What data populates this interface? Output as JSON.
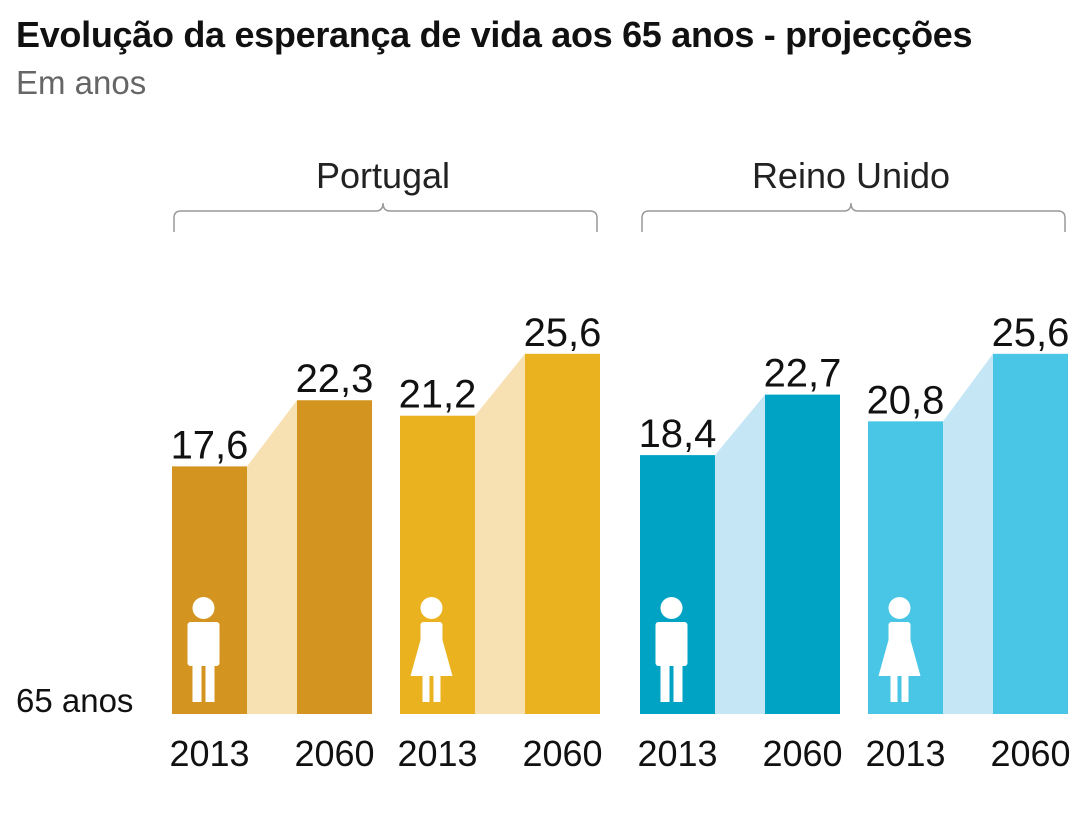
{
  "title": "Evolução da esperança de vida aos 65 anos - projecções",
  "subtitle": "Em anos",
  "colors": {
    "portugal_men": "#d49420",
    "portugal_women": "#ebb220",
    "portugal_connector": "#f7e1b3",
    "uk_men": "#01a3c5",
    "uk_women": "#49c5e6",
    "uk_connector": "#c4e6f5",
    "bracket": "#999999",
    "icon": "#ffffff"
  },
  "chart_data": {
    "type": "bar",
    "baseline_label": "65 anos",
    "groups": [
      {
        "name": "Portugal",
        "series": [
          {
            "sex_icon": "man-icon",
            "color_key": "portugal_men",
            "points": [
              {
                "year": "2013",
                "label": "17,6",
                "value": 17.6
              },
              {
                "year": "2060",
                "label": "22,3",
                "value": 22.3
              }
            ]
          },
          {
            "sex_icon": "woman-icon",
            "color_key": "portugal_women",
            "points": [
              {
                "year": "2013",
                "label": "21,2",
                "value": 21.2
              },
              {
                "year": "2060",
                "label": "25,6",
                "value": 25.6
              }
            ]
          }
        ]
      },
      {
        "name": "Reino Unido",
        "series": [
          {
            "sex_icon": "man-icon",
            "color_key": "uk_men",
            "points": [
              {
                "year": "2013",
                "label": "18,4",
                "value": 18.4
              },
              {
                "year": "2060",
                "label": "22,7",
                "value": 22.7
              }
            ]
          },
          {
            "sex_icon": "woman-icon",
            "color_key": "uk_women",
            "points": [
              {
                "year": "2013",
                "label": "20,8",
                "value": 20.8
              },
              {
                "year": "2060",
                "label": "25,6",
                "value": 25.6
              }
            ]
          }
        ]
      }
    ]
  }
}
